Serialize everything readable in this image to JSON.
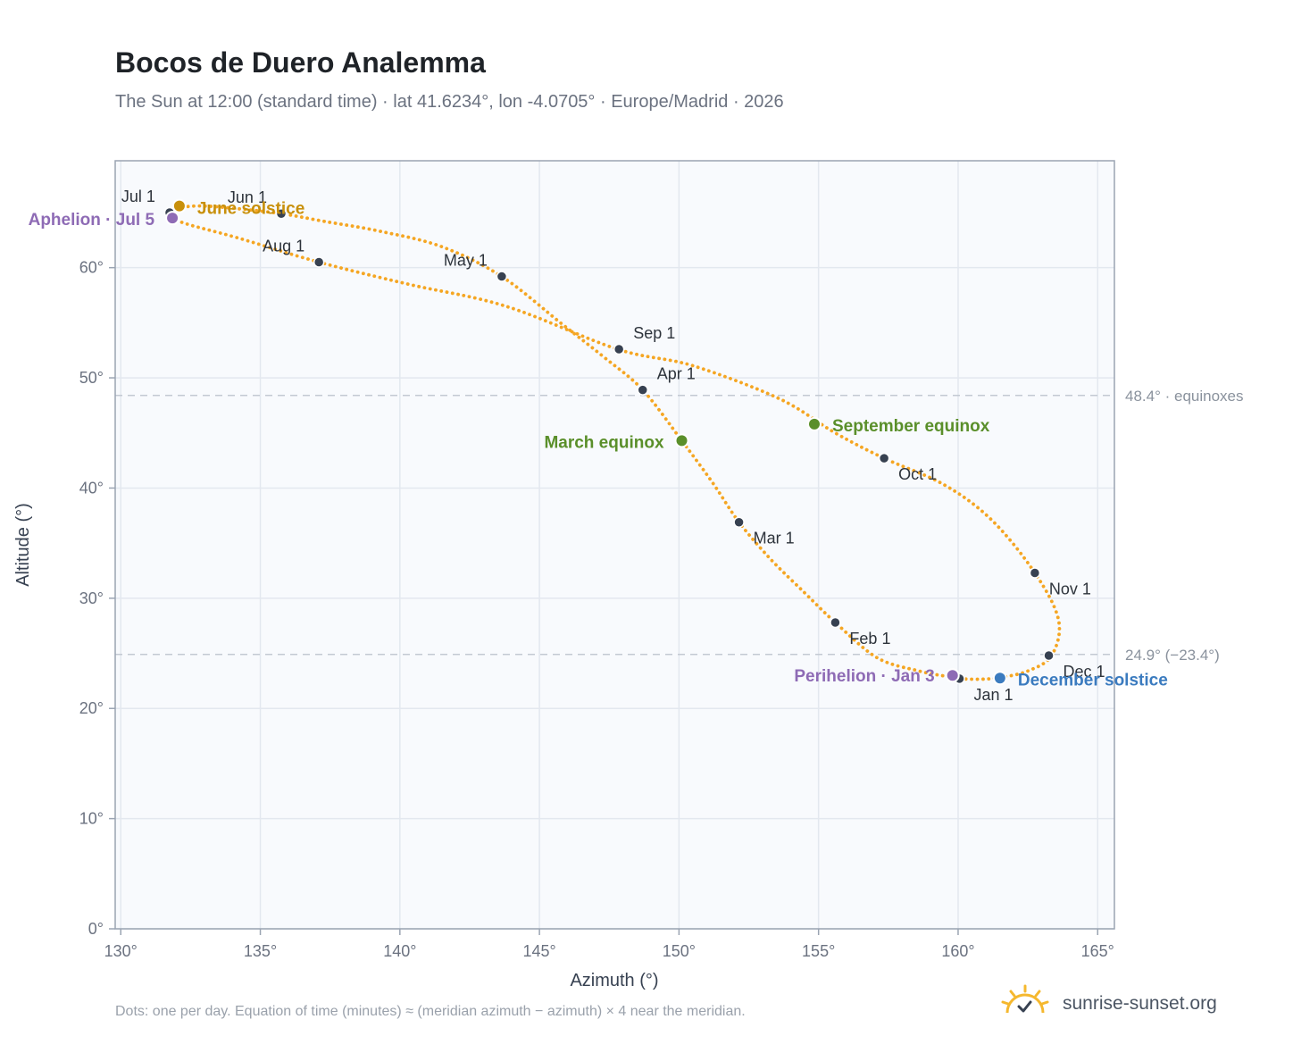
{
  "title": "Bocos de Duero Analemma",
  "subtitle": "The Sun at 12:00 (standard time) · lat 41.6234°, lon -4.0705° · Europe/Madrid · 2026",
  "footnote": "Dots: one per day. Equation of time (minutes) ≈ (meridian azimuth − azimuth) × 4 near the meridian.",
  "brand": {
    "name": "sunrise-sunset.org",
    "icon": "sun-logo-icon"
  },
  "colors": {
    "curve": "#f5a623",
    "month_marker": "#374151",
    "solstice_june": "#c8900c",
    "solstice_december": "#3b7bbf",
    "equinox": "#5a8f2a",
    "apsis": "#8e6bb5",
    "plot_bg": "#f8fafd",
    "grid": "#e3e8ef",
    "reference_line": "#c3c9d2"
  },
  "chart_data": {
    "type": "scatter",
    "title": "Bocos de Duero Analemma",
    "xlabel": "Azimuth (°)",
    "ylabel": "Altitude (°)",
    "xlim": [
      129.8,
      165.6
    ],
    "ylim": [
      0,
      69.7
    ],
    "x_ticks": [
      130,
      135,
      140,
      145,
      150,
      155,
      160,
      165
    ],
    "y_ticks": [
      0,
      10,
      20,
      30,
      40,
      50,
      60
    ],
    "tick_suffix": "°",
    "grid": true,
    "series": [
      {
        "name": "",
        "path": [
          [
            160.05,
            22.7
          ],
          [
            159.6,
            22.9
          ],
          [
            158.6,
            23.4
          ],
          [
            157.1,
            24.6
          ],
          [
            155.6,
            27.8
          ],
          [
            154.5,
            30.5
          ],
          [
            153.3,
            33.5
          ],
          [
            152.15,
            36.9
          ],
          [
            151.2,
            40.5
          ],
          [
            150.1,
            44.3
          ],
          [
            148.7,
            48.9
          ],
          [
            147.3,
            51.9
          ],
          [
            145.8,
            54.9
          ],
          [
            143.65,
            59.2
          ],
          [
            141.5,
            61.9
          ],
          [
            139.3,
            63.3
          ],
          [
            137.3,
            64.2
          ],
          [
            135.75,
            64.9
          ],
          [
            134.0,
            65.4
          ],
          [
            132.8,
            65.6
          ],
          [
            132.1,
            65.4
          ],
          [
            131.8,
            64.9
          ],
          [
            132.2,
            64.1
          ],
          [
            134.2,
            62.7
          ],
          [
            137.1,
            60.5
          ],
          [
            140.3,
            58.5
          ],
          [
            143.8,
            56.5
          ],
          [
            147.8,
            52.6
          ],
          [
            150.5,
            51.1
          ],
          [
            153.6,
            48.1
          ],
          [
            155.6,
            45.0
          ],
          [
            157.35,
            42.7
          ],
          [
            159.5,
            40.3
          ],
          [
            161.2,
            37.1
          ],
          [
            162.75,
            32.3
          ],
          [
            163.6,
            28.0
          ],
          [
            163.35,
            24.8
          ],
          [
            162.5,
            23.4
          ],
          [
            161.5,
            22.8
          ],
          [
            160.8,
            22.65
          ],
          [
            160.05,
            22.7
          ]
        ]
      }
    ],
    "month_markers": [
      {
        "label": "Jan 1",
        "az": 160.05,
        "alt": 22.7
      },
      {
        "label": "Feb 1",
        "az": 155.6,
        "alt": 27.8
      },
      {
        "label": "Mar 1",
        "az": 152.15,
        "alt": 36.9
      },
      {
        "label": "Apr 1",
        "az": 148.7,
        "alt": 48.9
      },
      {
        "label": "May 1",
        "az": 143.65,
        "alt": 59.2
      },
      {
        "label": "Jun 1",
        "az": 135.75,
        "alt": 64.9
      },
      {
        "label": "Jul 1",
        "az": 131.75,
        "alt": 65.0
      },
      {
        "label": "Aug 1",
        "az": 137.1,
        "alt": 60.5
      },
      {
        "label": "Sep 1",
        "az": 147.85,
        "alt": 52.6
      },
      {
        "label": "Oct 1",
        "az": 157.35,
        "alt": 42.7
      },
      {
        "label": "Nov 1",
        "az": 162.75,
        "alt": 32.3
      },
      {
        "label": "Dec 1",
        "az": 163.25,
        "alt": 24.8
      }
    ],
    "events": [
      {
        "label": "June solstice",
        "az": 132.1,
        "alt": 65.6,
        "kind": "solstice_june"
      },
      {
        "label": "Aphelion · Jul 5",
        "az": 131.85,
        "alt": 64.5,
        "kind": "apsis"
      },
      {
        "label": "March equinox",
        "az": 150.1,
        "alt": 44.3,
        "kind": "equinox"
      },
      {
        "label": "September equinox",
        "az": 154.85,
        "alt": 45.8,
        "kind": "equinox"
      },
      {
        "label": "Perihelion · Jan 3",
        "az": 159.8,
        "alt": 23.0,
        "kind": "apsis"
      },
      {
        "label": "December solstice",
        "az": 161.5,
        "alt": 22.75,
        "kind": "solstice_december"
      }
    ],
    "reference_lines": [
      {
        "value": 48.4,
        "label": "48.4° · equinoxes"
      },
      {
        "value": 24.9,
        "label": "24.9° (−23.4°)"
      }
    ]
  }
}
